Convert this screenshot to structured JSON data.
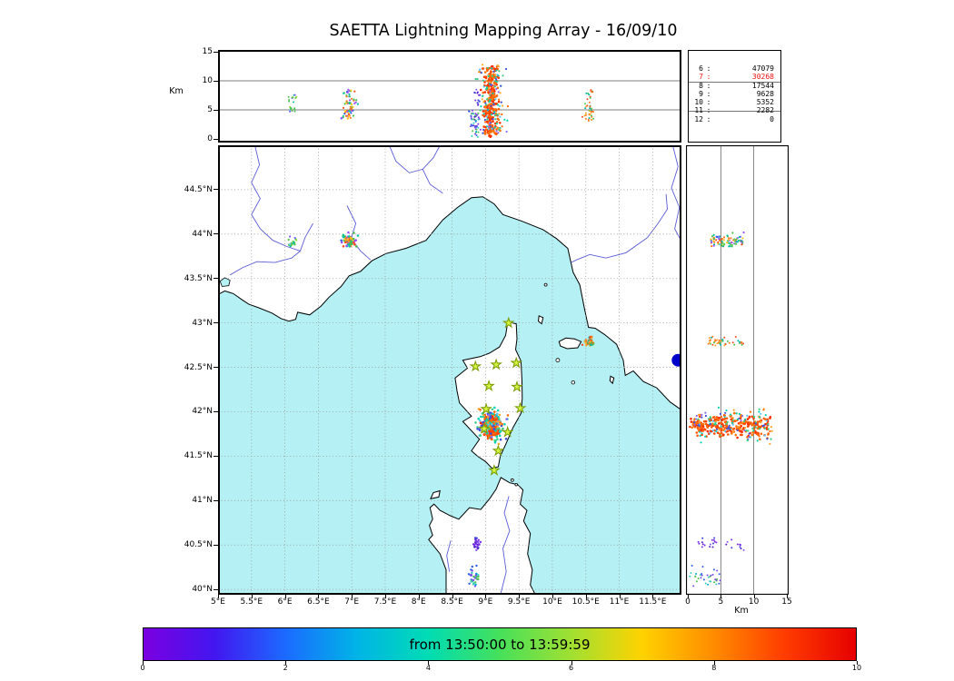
{
  "title": "SAETTA Lightning Mapping Array - 16/09/10",
  "style": {
    "sea_color": "#b4f0f4",
    "land_color": "#ffffff",
    "river_color": "#5b5bd6",
    "grid_color": "#999999",
    "star_fill": "#d4f542",
    "star_stroke": "#7a9a00",
    "lake_color": "#0000cc",
    "highlight_color": "#ee1111"
  },
  "axes": {
    "lat_ticks": [
      {
        "v": 44.5,
        "label": "44.5°N"
      },
      {
        "v": 44.0,
        "label": "44°N"
      },
      {
        "v": 43.5,
        "label": "43.5°N"
      },
      {
        "v": 43.0,
        "label": "43°N"
      },
      {
        "v": 42.5,
        "label": "42.5°N"
      },
      {
        "v": 42.0,
        "label": "42°N"
      },
      {
        "v": 41.5,
        "label": "41.5°N"
      },
      {
        "v": 41.0,
        "label": "41°N"
      },
      {
        "v": 40.5,
        "label": "40.5°N"
      },
      {
        "v": 40.0,
        "label": "40°N"
      }
    ],
    "lon_ticks": [
      {
        "v": 5.0,
        "label": "5°E"
      },
      {
        "v": 5.5,
        "label": "5.5°E"
      },
      {
        "v": 6.0,
        "label": "6°E"
      },
      {
        "v": 6.5,
        "label": "6.5°E"
      },
      {
        "v": 7.0,
        "label": "7°E"
      },
      {
        "v": 7.5,
        "label": "7.5°E"
      },
      {
        "v": 8.0,
        "label": "8°E"
      },
      {
        "v": 8.5,
        "label": "8.5°E"
      },
      {
        "v": 9.0,
        "label": "9°E"
      },
      {
        "v": 9.5,
        "label": "9.5°E"
      },
      {
        "v": 10.0,
        "label": "10°E"
      },
      {
        "v": 10.5,
        "label": "10.5°E"
      },
      {
        "v": 11.0,
        "label": "11°E"
      },
      {
        "v": 11.5,
        "label": "11.5°E"
      }
    ],
    "alt": {
      "label": "Km",
      "ticks": [
        {
          "v": 0,
          "label": "0"
        },
        {
          "v": 5,
          "label": "5"
        },
        {
          "v": 10,
          "label": "10"
        },
        {
          "v": 15,
          "label": "15"
        }
      ]
    }
  },
  "legend": {
    "rows": [
      {
        "stations": "6",
        "count": "47079"
      },
      {
        "stations": "7",
        "count": "30268"
      },
      {
        "stations": "8",
        "count": "17544"
      },
      {
        "stations": "9",
        "count": "9628"
      },
      {
        "stations": "10",
        "count": "5352"
      },
      {
        "stations": "11",
        "count": "2282"
      },
      {
        "stations": "12",
        "count": "0"
      }
    ],
    "highlight_index": 1
  },
  "colorbar": {
    "label": "from 13:50:00 to 13:59:59",
    "range": [
      0,
      10
    ],
    "ticks": [
      {
        "v": 0,
        "label": "0"
      },
      {
        "v": 2,
        "label": "2"
      },
      {
        "v": 4,
        "label": "4"
      },
      {
        "v": 6,
        "label": "6"
      },
      {
        "v": 8,
        "label": "8"
      },
      {
        "v": 10,
        "label": "10"
      }
    ],
    "gradient": [
      "#7b00e0",
      "#4316f0",
      "#1b6bff",
      "#00b4e6",
      "#00dcb4",
      "#46e05a",
      "#a0e032",
      "#ffd200",
      "#ff8c00",
      "#ff3c00",
      "#e60000"
    ]
  },
  "chart_data": {
    "type": "scatter",
    "title": "SAETTA Lightning Mapping Array - 16/09/10",
    "time_window": "from 13:50:00 to 13:59:59",
    "map_extent": {
      "lon_range": [
        5.0,
        11.93
      ],
      "lat_range": [
        39.94,
        45.0
      ]
    },
    "altitude_km_range": [
      0,
      15
    ],
    "altitude_gridlines_km": [
      5,
      10
    ],
    "colorbar_value_range": [
      0,
      10
    ],
    "source_counts_by_min_stations": [
      {
        "min_stations": 6,
        "count": 47079
      },
      {
        "min_stations": 7,
        "count": 30268
      },
      {
        "min_stations": 8,
        "count": 17544
      },
      {
        "min_stations": 9,
        "count": 9628
      },
      {
        "min_stations": 10,
        "count": 5352
      },
      {
        "min_stations": 11,
        "count": 2282
      },
      {
        "min_stations": 12,
        "count": 0
      }
    ],
    "stations_lon_lat": [
      [
        9.345,
        43.0
      ],
      [
        8.85,
        42.51
      ],
      [
        9.16,
        42.53
      ],
      [
        9.46,
        42.55
      ],
      [
        9.05,
        42.29
      ],
      [
        9.47,
        42.28
      ],
      [
        9.01,
        42.03
      ],
      [
        9.52,
        42.04
      ],
      [
        8.98,
        41.81
      ],
      [
        9.33,
        41.77
      ],
      [
        9.19,
        41.56
      ],
      [
        9.13,
        41.34
      ]
    ],
    "clusters": [
      {
        "name": "corsica-storm-core",
        "lon": 9.08,
        "dlon": 0.1,
        "lat": 41.84,
        "dlat": 0.11,
        "alt": [
          0.3,
          12.5
        ],
        "n": 260,
        "r": 1.5,
        "colors": [
          "#ff3b00",
          "#ff5a00",
          "#ff2a00",
          "#ff6a00",
          "#ff4500",
          "#ff7b00"
        ]
      },
      {
        "name": "corsica-storm-fringe",
        "lon": 9.1,
        "dlon": 0.2,
        "lat": 41.85,
        "dlat": 0.16,
        "alt": [
          1,
          13
        ],
        "n": 130,
        "r": 1.3,
        "colors": [
          "#00d2b4",
          "#35cf86",
          "#57c9ff",
          "#8b6bff",
          "#ffa62b",
          "#ff6a00",
          "#3f51e0"
        ]
      },
      {
        "name": "cote-azur-cells",
        "lon": 6.97,
        "dlon": 0.1,
        "lat": 43.93,
        "dlat": 0.07,
        "alt": [
          3.5,
          8.5
        ],
        "n": 70,
        "r": 1.3,
        "colors": [
          "#ff7a1e",
          "#ff4b1e",
          "#46c04f",
          "#2a5fe8",
          "#9b4dff",
          "#00c2a8",
          "#ffc81e"
        ]
      },
      {
        "name": "provence-cell",
        "lon": 6.1,
        "dlon": 0.08,
        "lat": 43.9,
        "dlat": 0.06,
        "alt": [
          4.5,
          8
        ],
        "n": 22,
        "r": 1.1,
        "colors": [
          "#4fc24f",
          "#00c2a8",
          "#8ad42e",
          "#7a5cff",
          "#57c9ff"
        ]
      },
      {
        "name": "tuscany-coast-cell",
        "lon": 10.56,
        "dlon": 0.08,
        "lat": 42.79,
        "dlat": 0.05,
        "alt": [
          3,
          8.5
        ],
        "n": 45,
        "r": 1.2,
        "colors": [
          "#ff7a1e",
          "#ff4b1e",
          "#4fc24f",
          "#ffa62b",
          "#00b4a8"
        ]
      },
      {
        "name": "sardinia-mid-cell",
        "lon": 8.87,
        "dlon": 0.05,
        "lat": 40.52,
        "dlat": 0.07,
        "alt": [
          1,
          8.5
        ],
        "n": 26,
        "r": 1.2,
        "colors": [
          "#7a2fe8",
          "#5a22cc",
          "#8a55ff",
          "#3a3fd8"
        ]
      },
      {
        "name": "sardinia-south-cell",
        "lon": 8.84,
        "dlon": 0.07,
        "lat": 40.12,
        "dlat": 0.11,
        "alt": [
          0.2,
          5
        ],
        "n": 35,
        "r": 1.2,
        "colors": [
          "#2a5fe8",
          "#00a8d8",
          "#35cfba",
          "#4fc24f",
          "#7a4fe8"
        ]
      }
    ]
  }
}
